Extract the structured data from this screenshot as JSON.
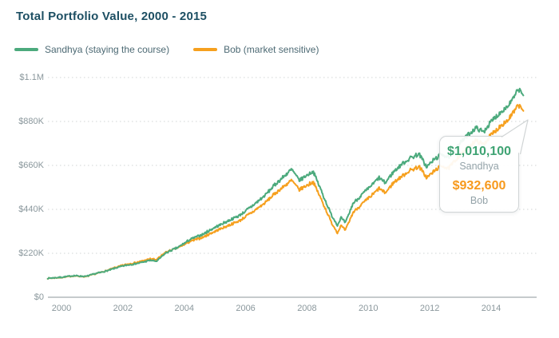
{
  "title": "Total Portfolio Value, 2000 - 2015",
  "legend": {
    "items": [
      {
        "label": "Sandhya (staying the course)",
        "color": "#4caa7d"
      },
      {
        "label": "Bob (market sensitive)",
        "color": "#f6a01e"
      }
    ]
  },
  "tooltip": {
    "entries": [
      {
        "value": "$1,010,100",
        "name": "Sandhya",
        "color": "#3fa373"
      },
      {
        "value": "$932,600",
        "name": "Bob",
        "color": "#f7991c"
      }
    ]
  },
  "colors": {
    "title": "#1d4f63",
    "sandhya_line": "#4caa7d",
    "bob_line": "#f6a01e",
    "axis_label": "#8a979c",
    "gridline": "#d9dddd",
    "axis_line": "#c6cbcc"
  },
  "chart_data": {
    "type": "line",
    "title": "Total Portfolio Value, 2000 - 2015",
    "xlabel": "",
    "ylabel": "",
    "y_unit": "USD thousands",
    "xlim": [
      1999.55,
      2015.05
    ],
    "ylim": [
      0,
      1100
    ],
    "grid": "horizontal-dotted",
    "legend_position": "top-left",
    "x_ticks": [
      {
        "label": "2000",
        "value": 2000
      },
      {
        "label": "2002",
        "value": 2002
      },
      {
        "label": "2004",
        "value": 2004
      },
      {
        "label": "2006",
        "value": 2006
      },
      {
        "label": "2008",
        "value": 2008
      },
      {
        "label": "2010",
        "value": 2010
      },
      {
        "label": "2012",
        "value": 2012
      },
      {
        "label": "2014",
        "value": 2014
      }
    ],
    "y_ticks": [
      {
        "label": "$0",
        "value": 0
      },
      {
        "label": "$220K",
        "value": 220
      },
      {
        "label": "$440K",
        "value": 440
      },
      {
        "label": "$660K",
        "value": 660
      },
      {
        "label": "$880K",
        "value": 880
      },
      {
        "label": "$1.1M",
        "value": 1100
      }
    ],
    "x": [
      1999.55,
      2000,
      2000.4,
      2000.8,
      2001.1,
      2001.5,
      2001.8,
      2002.1,
      2002.5,
      2002.9,
      2003.1,
      2003.4,
      2003.8,
      2004.2,
      2004.6,
      2005,
      2005.4,
      2005.8,
      2006.2,
      2006.6,
      2007,
      2007.5,
      2007.75,
      2008,
      2008.2,
      2008.5,
      2008.8,
      2009,
      2009.1,
      2009.25,
      2009.5,
      2009.8,
      2010.1,
      2010.35,
      2010.55,
      2010.8,
      2011.1,
      2011.4,
      2011.65,
      2011.9,
      2012.15,
      2012.4,
      2012.6,
      2012.9,
      2013.2,
      2013.5,
      2013.75,
      2014,
      2014.3,
      2014.55,
      2014.75,
      2014.9,
      2015.05
    ],
    "series": [
      {
        "name": "Sandhya (staying the course)",
        "color": "#4caa7d",
        "final_value_label": "$1,010,100",
        "values": [
          95,
          100,
          108,
          104,
          118,
          133,
          148,
          160,
          170,
          185,
          180,
          222,
          250,
          290,
          315,
          350,
          380,
          410,
          455,
          505,
          570,
          640,
          585,
          612,
          630,
          520,
          410,
          360,
          400,
          372,
          470,
          515,
          560,
          598,
          572,
          625,
          668,
          700,
          718,
          652,
          690,
          718,
          700,
          756,
          806,
          848,
          828,
          878,
          926,
          958,
          1002,
          1042,
          1010.1
        ]
      },
      {
        "name": "Bob (market sensitive)",
        "color": "#f6a01e",
        "final_value_label": "$932,600",
        "values": [
          95,
          99,
          107,
          103,
          117,
          134,
          151,
          164,
          176,
          192,
          188,
          226,
          248,
          280,
          300,
          330,
          357,
          383,
          424,
          468,
          525,
          585,
          538,
          560,
          578,
          478,
          372,
          322,
          360,
          334,
          425,
          468,
          508,
          545,
          522,
          570,
          608,
          638,
          655,
          598,
          632,
          660,
          643,
          697,
          744,
          784,
          764,
          812,
          858,
          888,
          928,
          964,
          932.6
        ]
      }
    ],
    "noise": {
      "seed": 7,
      "rel_amplitude": 0.012,
      "abs_amplitude_k": 1.6,
      "step_years": 0.02
    }
  }
}
